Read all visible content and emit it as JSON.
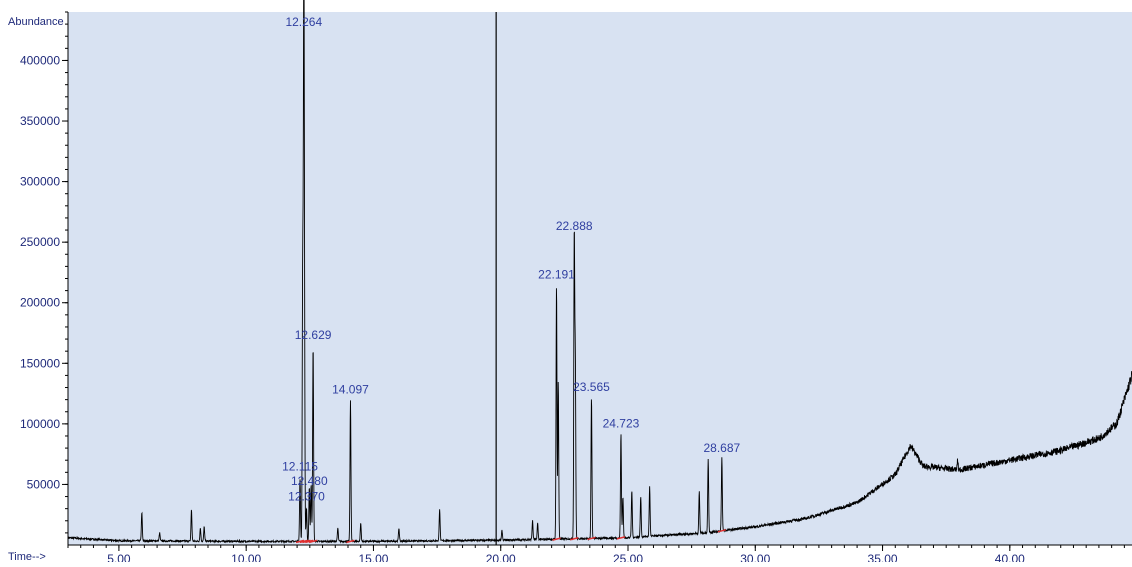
{
  "chart_data": {
    "type": "line",
    "ylabel": "Abundance",
    "xlabel": "Time-->",
    "xlim": [
      3.0,
      44.8
    ],
    "ylim": [
      0,
      440000
    ],
    "x_ticks": [
      5,
      10,
      15,
      20,
      25,
      30,
      35,
      40
    ],
    "x_tick_labels": [
      "5.00",
      "10.00",
      "15.00",
      "20.00",
      "25.00",
      "30.00",
      "35.00",
      "40.00"
    ],
    "y_ticks": [
      50000,
      100000,
      150000,
      200000,
      250000,
      300000,
      350000,
      400000
    ],
    "y_tick_labels": [
      "50000",
      "100000",
      "150000",
      "200000",
      "250000",
      "300000",
      "350000",
      "400000"
    ],
    "grid": false,
    "colors": {
      "plot_bg": "#d8e2f2",
      "trace": "#000000",
      "labels": "#2f3fa0",
      "integration_marks": "#e03030"
    },
    "marker_line_time": 19.82,
    "peaks": [
      {
        "rt": 12.264,
        "label": "12.264",
        "height": 435000
      },
      {
        "rt": 12.629,
        "label": "12.629",
        "height": 165000
      },
      {
        "rt": 12.115,
        "label": "12.115",
        "height": 55000
      },
      {
        "rt": 12.48,
        "label": "12.480",
        "height": 48000
      },
      {
        "rt": 12.37,
        "label": "12.370",
        "height": 30000
      },
      {
        "rt": 14.097,
        "label": "14.097",
        "height": 120000
      },
      {
        "rt": 22.191,
        "label": "22.191",
        "height": 215000
      },
      {
        "rt": 22.888,
        "label": "22.888",
        "height": 255000
      },
      {
        "rt": 23.565,
        "label": "23.565",
        "height": 122000
      },
      {
        "rt": 24.723,
        "label": "24.723",
        "height": 92000
      },
      {
        "rt": 28.687,
        "label": "28.687",
        "height": 72000
      }
    ],
    "minor_peaks": [
      {
        "rt": 5.9,
        "height": 27000
      },
      {
        "rt": 6.6,
        "height": 10000
      },
      {
        "rt": 7.85,
        "height": 29000
      },
      {
        "rt": 8.2,
        "height": 14000
      },
      {
        "rt": 8.35,
        "height": 15000
      },
      {
        "rt": 12.22,
        "height": 225000
      },
      {
        "rt": 12.29,
        "height": 140000
      },
      {
        "rt": 12.55,
        "height": 50000
      },
      {
        "rt": 13.6,
        "height": 14000
      },
      {
        "rt": 14.5,
        "height": 18000
      },
      {
        "rt": 16.0,
        "height": 14000
      },
      {
        "rt": 17.6,
        "height": 30000
      },
      {
        "rt": 20.05,
        "height": 12000
      },
      {
        "rt": 21.25,
        "height": 20000
      },
      {
        "rt": 21.45,
        "height": 18000
      },
      {
        "rt": 22.26,
        "height": 135000
      },
      {
        "rt": 22.93,
        "height": 148000
      },
      {
        "rt": 24.8,
        "height": 40000
      },
      {
        "rt": 25.15,
        "height": 45000
      },
      {
        "rt": 25.5,
        "height": 40000
      },
      {
        "rt": 25.85,
        "height": 48000
      },
      {
        "rt": 27.8,
        "height": 44000
      },
      {
        "rt": 28.15,
        "height": 71000
      },
      {
        "rt": 37.95,
        "height": 70000
      }
    ],
    "baseline": [
      [
        3.0,
        6000
      ],
      [
        5.0,
        3500
      ],
      [
        10.0,
        3000
      ],
      [
        15.0,
        3000
      ],
      [
        20.0,
        4000
      ],
      [
        25.0,
        6000
      ],
      [
        28.0,
        10000
      ],
      [
        30.0,
        15000
      ],
      [
        32.0,
        22000
      ],
      [
        34.0,
        35000
      ],
      [
        35.5,
        58000
      ],
      [
        36.1,
        82000
      ],
      [
        36.6,
        65000
      ],
      [
        38.0,
        62000
      ],
      [
        40.0,
        70000
      ],
      [
        42.0,
        78000
      ],
      [
        43.5,
        88000
      ],
      [
        44.2,
        100000
      ],
      [
        44.8,
        140000
      ]
    ]
  }
}
